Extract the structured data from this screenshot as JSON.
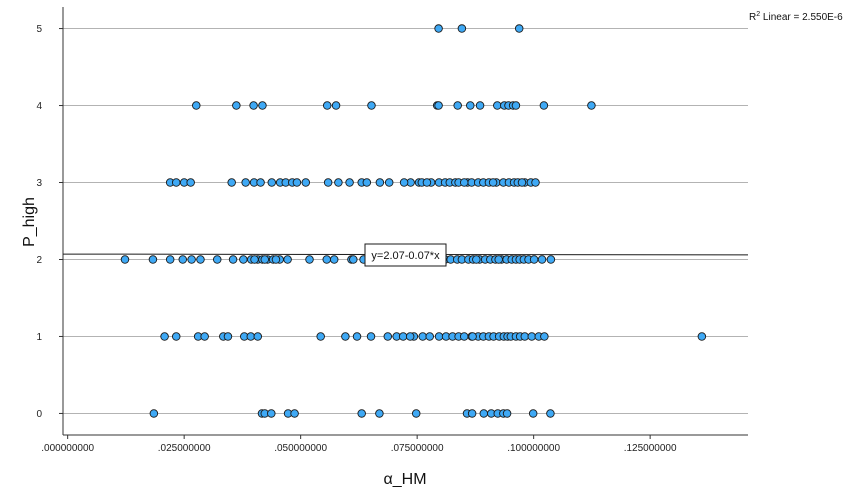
{
  "chart_data": {
    "type": "scatter",
    "xlabel": "α_HM",
    "ylabel": "P_high",
    "xlim": [
      -0.001,
      0.146
    ],
    "ylim": [
      -0.28,
      5.28
    ],
    "x_ticks": [
      0.0,
      0.025,
      0.05,
      0.075,
      0.1,
      0.125
    ],
    "x_tick_labels": [
      ".000000000",
      ".025000000",
      ".050000000",
      ".075000000",
      ".100000000",
      ".125000000"
    ],
    "y_ticks": [
      0,
      1,
      2,
      3,
      4,
      5
    ],
    "y_tick_labels": [
      "0",
      "1",
      "2",
      "3",
      "4",
      "5"
    ],
    "grid": "horizontal",
    "marker_color": "#3fa9f5",
    "marker_edge": "#1a1a1a",
    "fit_line": {
      "equation_label": "y=2.07-0.07*x",
      "intercept": 2.07,
      "slope": -0.07,
      "r2_prefix": "R",
      "r2_sup": "2",
      "r2_label": " Linear = 2.550E-6"
    },
    "series": [
      {
        "points": [
          [
            0.0796,
            5
          ],
          [
            0.0846,
            5
          ],
          [
            0.0969,
            5
          ],
          [
            0.0276,
            4
          ],
          [
            0.0362,
            4
          ],
          [
            0.0399,
            4
          ],
          [
            0.0418,
            4
          ],
          [
            0.0557,
            4
          ],
          [
            0.0576,
            4
          ],
          [
            0.0652,
            4
          ],
          [
            0.0793,
            4
          ],
          [
            0.0796,
            4
          ],
          [
            0.0837,
            4
          ],
          [
            0.0864,
            4
          ],
          [
            0.0885,
            4
          ],
          [
            0.0922,
            4
          ],
          [
            0.0937,
            4
          ],
          [
            0.0946,
            4
          ],
          [
            0.0956,
            4
          ],
          [
            0.0962,
            4
          ],
          [
            0.1022,
            4
          ],
          [
            0.1124,
            4
          ],
          [
            0.022,
            3
          ],
          [
            0.0233,
            3
          ],
          [
            0.025,
            3
          ],
          [
            0.0264,
            3
          ],
          [
            0.0352,
            3
          ],
          [
            0.0382,
            3
          ],
          [
            0.04,
            3
          ],
          [
            0.0414,
            3
          ],
          [
            0.0438,
            3
          ],
          [
            0.0456,
            3
          ],
          [
            0.0468,
            3
          ],
          [
            0.0482,
            3
          ],
          [
            0.0492,
            3
          ],
          [
            0.0511,
            3
          ],
          [
            0.0559,
            3
          ],
          [
            0.0581,
            3
          ],
          [
            0.0605,
            3
          ],
          [
            0.0631,
            3
          ],
          [
            0.067,
            3
          ],
          [
            0.069,
            3
          ],
          [
            0.0736,
            3
          ],
          [
            0.0754,
            3
          ],
          [
            0.076,
            3
          ],
          [
            0.078,
            3
          ],
          [
            0.0797,
            3
          ],
          [
            0.081,
            3
          ],
          [
            0.082,
            3
          ],
          [
            0.0832,
            3
          ],
          [
            0.0839,
            3
          ],
          [
            0.0858,
            3
          ],
          [
            0.0867,
            3
          ],
          [
            0.0881,
            3
          ],
          [
            0.0892,
            3
          ],
          [
            0.0904,
            3
          ],
          [
            0.092,
            3
          ],
          [
            0.0935,
            3
          ],
          [
            0.0947,
            3
          ],
          [
            0.0958,
            3
          ],
          [
            0.0966,
            3
          ],
          [
            0.0981,
            3
          ],
          [
            0.0994,
            3
          ],
          [
            0.1004,
            3
          ],
          [
            0.0642,
            3
          ],
          [
            0.0722,
            3
          ],
          [
            0.0771,
            3
          ],
          [
            0.0851,
            3
          ],
          [
            0.0913,
            3
          ],
          [
            0.0975,
            3
          ],
          [
            0.0123,
            2
          ],
          [
            0.0183,
            2
          ],
          [
            0.022,
            2
          ],
          [
            0.0247,
            2
          ],
          [
            0.0266,
            2
          ],
          [
            0.0285,
            2
          ],
          [
            0.0321,
            2
          ],
          [
            0.0355,
            2
          ],
          [
            0.0377,
            2
          ],
          [
            0.0394,
            2
          ],
          [
            0.0408,
            2
          ],
          [
            0.0418,
            2
          ],
          [
            0.0429,
            2
          ],
          [
            0.0441,
            2
          ],
          [
            0.0455,
            2
          ],
          [
            0.0472,
            2
          ],
          [
            0.0519,
            2
          ],
          [
            0.0556,
            2
          ],
          [
            0.0572,
            2
          ],
          [
            0.0609,
            2
          ],
          [
            0.0613,
            2
          ],
          [
            0.0635,
            2
          ],
          [
            0.0727,
            2
          ],
          [
            0.0787,
            2
          ],
          [
            0.081,
            2
          ],
          [
            0.0822,
            2
          ],
          [
            0.0836,
            2
          ],
          [
            0.0846,
            2
          ],
          [
            0.086,
            2
          ],
          [
            0.087,
            2
          ],
          [
            0.0884,
            2
          ],
          [
            0.0896,
            2
          ],
          [
            0.0907,
            2
          ],
          [
            0.0918,
            2
          ],
          [
            0.0931,
            2
          ],
          [
            0.0942,
            2
          ],
          [
            0.0953,
            2
          ],
          [
            0.0962,
            2
          ],
          [
            0.097,
            2
          ],
          [
            0.0979,
            2
          ],
          [
            0.0989,
            2
          ],
          [
            0.1001,
            2
          ],
          [
            0.1018,
            2
          ],
          [
            0.1037,
            2
          ],
          [
            0.0401,
            2
          ],
          [
            0.0423,
            2
          ],
          [
            0.0447,
            2
          ],
          [
            0.0877,
            2
          ],
          [
            0.0925,
            2
          ],
          [
            0.0208,
            1
          ],
          [
            0.0233,
            1
          ],
          [
            0.028,
            1
          ],
          [
            0.0294,
            1
          ],
          [
            0.0334,
            1
          ],
          [
            0.0344,
            1
          ],
          [
            0.0379,
            1
          ],
          [
            0.0393,
            1
          ],
          [
            0.0408,
            1
          ],
          [
            0.0543,
            1
          ],
          [
            0.0596,
            1
          ],
          [
            0.0621,
            1
          ],
          [
            0.0651,
            1
          ],
          [
            0.0687,
            1
          ],
          [
            0.0706,
            1
          ],
          [
            0.072,
            1
          ],
          [
            0.0743,
            1
          ],
          [
            0.0762,
            1
          ],
          [
            0.0777,
            1
          ],
          [
            0.0797,
            1
          ],
          [
            0.0812,
            1
          ],
          [
            0.0826,
            1
          ],
          [
            0.0839,
            1
          ],
          [
            0.0851,
            1
          ],
          [
            0.0867,
            1
          ],
          [
            0.0881,
            1
          ],
          [
            0.0892,
            1
          ],
          [
            0.0904,
            1
          ],
          [
            0.0914,
            1
          ],
          [
            0.0926,
            1
          ],
          [
            0.0936,
            1
          ],
          [
            0.0944,
            1
          ],
          [
            0.0951,
            1
          ],
          [
            0.0962,
            1
          ],
          [
            0.0971,
            1
          ],
          [
            0.0981,
            1
          ],
          [
            0.0996,
            1
          ],
          [
            0.1011,
            1
          ],
          [
            0.1023,
            1
          ],
          [
            0.1361,
            1
          ],
          [
            0.0735,
            1
          ],
          [
            0.0869,
            1
          ],
          [
            0.0185,
            0
          ],
          [
            0.0417,
            0
          ],
          [
            0.0423,
            0
          ],
          [
            0.0437,
            0
          ],
          [
            0.0473,
            0
          ],
          [
            0.0487,
            0
          ],
          [
            0.0631,
            0
          ],
          [
            0.0669,
            0
          ],
          [
            0.0748,
            0
          ],
          [
            0.0857,
            0
          ],
          [
            0.0868,
            0
          ],
          [
            0.0893,
            0
          ],
          [
            0.0909,
            0
          ],
          [
            0.0923,
            0
          ],
          [
            0.0935,
            0
          ],
          [
            0.0943,
            0
          ],
          [
            0.0999,
            0
          ],
          [
            0.1036,
            0
          ]
        ]
      }
    ]
  }
}
